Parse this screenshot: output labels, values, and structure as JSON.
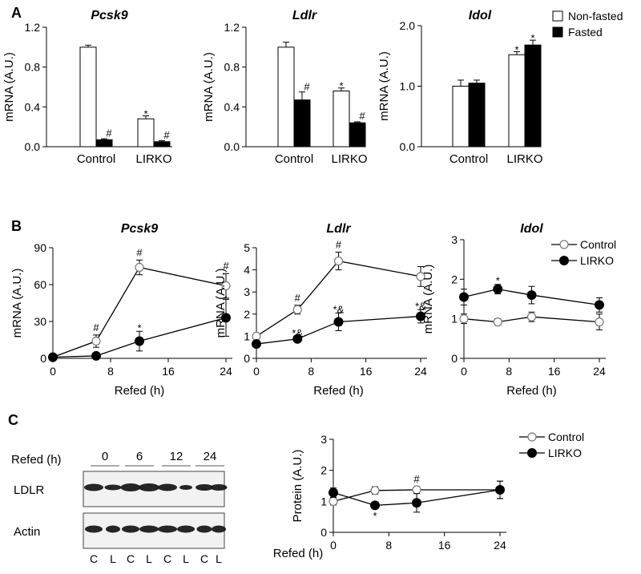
{
  "panel_labels": {
    "A": "A",
    "B": "B",
    "C": "C"
  },
  "chart_data": [
    {
      "id": "a1",
      "type": "bar",
      "title": "Pcsk9",
      "ylabel": "mRNA (A.U.)",
      "xlabel": "",
      "categories": [
        "Control",
        "LIRKO"
      ],
      "ylim": [
        0,
        1.2
      ],
      "yticks": [
        "0.0",
        "0.4",
        "0.8",
        "1.2"
      ],
      "series": [
        {
          "name": "Non-fasted",
          "values": [
            1.0,
            0.28
          ],
          "errors": [
            0.02,
            0.03
          ],
          "annotations": [
            "",
            "*"
          ]
        },
        {
          "name": "Fasted",
          "values": [
            0.07,
            0.05
          ],
          "errors": [
            0.01,
            0.01
          ],
          "annotations": [
            "#",
            "#"
          ]
        }
      ]
    },
    {
      "id": "a2",
      "type": "bar",
      "title": "Ldlr",
      "ylabel": "mRNA (A.U.)",
      "xlabel": "",
      "categories": [
        "Control",
        "LIRKO"
      ],
      "ylim": [
        0,
        1.2
      ],
      "yticks": [
        "0.0",
        "0.4",
        "0.8",
        "1.2"
      ],
      "series": [
        {
          "name": "Non-fasted",
          "values": [
            1.0,
            0.56
          ],
          "errors": [
            0.05,
            0.03
          ],
          "annotations": [
            "",
            "*"
          ]
        },
        {
          "name": "Fasted",
          "values": [
            0.47,
            0.24
          ],
          "errors": [
            0.08,
            0.01
          ],
          "annotations": [
            "#",
            "#"
          ]
        }
      ]
    },
    {
      "id": "a3",
      "type": "bar",
      "title": "Idol",
      "ylabel": "mRNA (A.U.)",
      "xlabel": "",
      "categories": [
        "Control",
        "LIRKO"
      ],
      "ylim": [
        0,
        2.0
      ],
      "yticks": [
        "0.0",
        "1.0",
        "2.0"
      ],
      "series": [
        {
          "name": "Non-fasted",
          "values": [
            1.0,
            1.52
          ],
          "errors": [
            0.1,
            0.05
          ],
          "annotations": [
            "",
            "*"
          ]
        },
        {
          "name": "Fasted",
          "values": [
            1.05,
            1.68
          ],
          "errors": [
            0.05,
            0.08
          ],
          "annotations": [
            "",
            "*"
          ]
        }
      ],
      "legend": [
        "Non-fasted",
        "Fasted"
      ]
    },
    {
      "id": "b1",
      "type": "line",
      "title": "Pcsk9",
      "ylabel": "mRNA (A.U.)",
      "xlabel": "Refed (h)",
      "x": [
        0,
        6,
        12,
        24
      ],
      "xticks": [
        0,
        8,
        16,
        24
      ],
      "xlim": [
        0,
        24
      ],
      "ylim": [
        0,
        90
      ],
      "yticks": [
        0,
        30,
        60,
        90
      ],
      "series": [
        {
          "name": "Control",
          "values": [
            1,
            14,
            74,
            59
          ],
          "errors": [
            1,
            5,
            6,
            10
          ],
          "annotations": [
            "",
            "#",
            "#",
            "#"
          ]
        },
        {
          "name": "LIRKO",
          "values": [
            1,
            2,
            14,
            33
          ],
          "errors": [
            0.5,
            1,
            8,
            15
          ],
          "annotations": [
            "",
            "",
            "*",
            ""
          ]
        }
      ]
    },
    {
      "id": "b2",
      "type": "line",
      "title": "Ldlr",
      "ylabel": "mRNA (A.U.)",
      "xlabel": "Refed (h)",
      "x": [
        0,
        6,
        12,
        24
      ],
      "xticks": [
        0,
        8,
        16,
        24
      ],
      "xlim": [
        0,
        24
      ],
      "ylim": [
        0,
        5
      ],
      "yticks": [
        0,
        1,
        2,
        3,
        4,
        5
      ],
      "series": [
        {
          "name": "Control",
          "values": [
            1.0,
            2.2,
            4.4,
            3.7
          ],
          "errors": [
            0.1,
            0.2,
            0.4,
            0.45
          ],
          "annotations": [
            "",
            "#",
            "#",
            ""
          ]
        },
        {
          "name": "LIRKO",
          "values": [
            0.65,
            0.88,
            1.65,
            1.9
          ],
          "errors": [
            0.1,
            0.1,
            0.4,
            0.3
          ],
          "annotations": [
            "",
            "*&",
            "*&",
            "*&"
          ]
        }
      ]
    },
    {
      "id": "b3",
      "type": "line",
      "title": "Idol",
      "ylabel": "mRNA (A.U.)",
      "xlabel": "Refed (h)",
      "x": [
        0,
        6,
        12,
        24
      ],
      "xticks": [
        0,
        8,
        16,
        24
      ],
      "xlim": [
        0,
        24
      ],
      "ylim": [
        0,
        3
      ],
      "yticks": [
        0,
        1,
        2,
        3
      ],
      "series": [
        {
          "name": "Control",
          "values": [
            1.0,
            0.92,
            1.05,
            0.92
          ],
          "errors": [
            0.12,
            0.08,
            0.12,
            0.2
          ],
          "annotations": [
            "",
            "",
            "",
            ""
          ]
        },
        {
          "name": "LIRKO",
          "values": [
            1.55,
            1.75,
            1.6,
            1.35
          ],
          "errors": [
            0.2,
            0.12,
            0.22,
            0.18
          ],
          "annotations": [
            "",
            "*",
            "",
            ""
          ]
        }
      ],
      "legend": [
        "Control",
        "LIRKO"
      ]
    },
    {
      "id": "c1",
      "type": "line",
      "title": "",
      "ylabel": "Protein (A.U.)",
      "xlabel": "Refed (h)",
      "x": [
        0,
        6,
        12,
        24
      ],
      "xticks": [
        0,
        8,
        16,
        24
      ],
      "xlim": [
        0,
        24
      ],
      "ylim": [
        0,
        3
      ],
      "yticks": [
        0,
        1,
        2,
        3
      ],
      "series": [
        {
          "name": "Control",
          "values": [
            1.0,
            1.35,
            1.37,
            1.37
          ],
          "errors": [
            0.12,
            0.12,
            0.1,
            0.28
          ],
          "annotations": [
            "",
            "",
            "#",
            ""
          ]
        },
        {
          "name": "LIRKO",
          "values": [
            1.28,
            0.87,
            0.95,
            1.37
          ],
          "errors": [
            0.15,
            0.1,
            0.3,
            0.28
          ],
          "annotations": [
            "",
            "*",
            "",
            ""
          ]
        }
      ],
      "legend": [
        "Control",
        "LIRKO"
      ]
    }
  ],
  "blot": {
    "xlabel": "Refed (h)",
    "timepoints": [
      "0",
      "6",
      "12",
      "24"
    ],
    "rows": [
      "LDLR",
      "Actin"
    ],
    "lanes": [
      "C",
      "L",
      "C",
      "L",
      "C",
      "L",
      "C",
      "L"
    ]
  }
}
